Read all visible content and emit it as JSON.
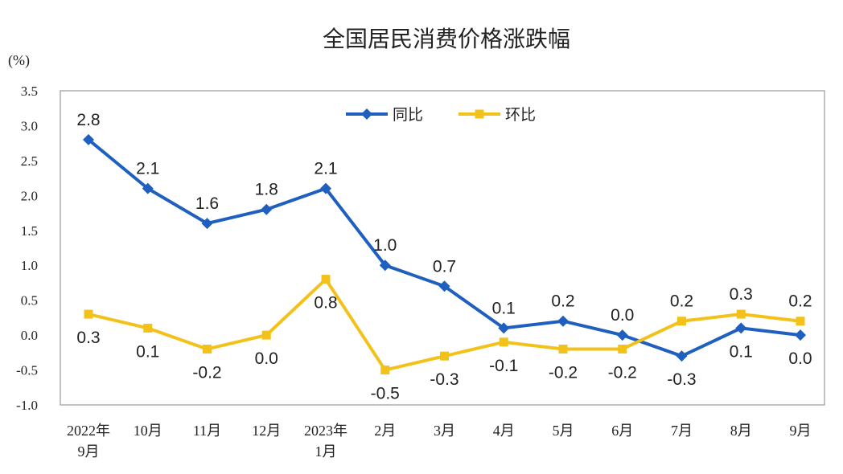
{
  "chart_data": {
    "type": "line",
    "title": "全国居民消费价格涨跌幅",
    "unit": "(%)",
    "ylim": [
      -1.0,
      3.5
    ],
    "yticks": [
      "3.5",
      "3.0",
      "2.5",
      "2.0",
      "1.5",
      "1.0",
      "0.5",
      "0.0",
      "-0.5",
      "-1.0"
    ],
    "ytick_values": [
      3.5,
      3.0,
      2.5,
      2.0,
      1.5,
      1.0,
      0.5,
      0.0,
      -0.5,
      -1.0
    ],
    "categories": [
      [
        "2022年",
        "9月"
      ],
      [
        "10月"
      ],
      [
        "11月"
      ],
      [
        "12月"
      ],
      [
        "2023年",
        "1月"
      ],
      [
        "2月"
      ],
      [
        "3月"
      ],
      [
        "4月"
      ],
      [
        "5月"
      ],
      [
        "6月"
      ],
      [
        "7月"
      ],
      [
        "8月"
      ],
      [
        "9月"
      ]
    ],
    "legend_position": "top-center",
    "grid": false,
    "series": [
      {
        "name": "同比",
        "color": "#1f5fbf",
        "marker": "diamond",
        "values": [
          2.8,
          2.1,
          1.6,
          1.8,
          2.1,
          1.0,
          0.7,
          0.1,
          0.2,
          0.0,
          -0.3,
          0.1,
          0.0
        ],
        "labels": [
          "2.8",
          "2.1",
          "1.6",
          "1.8",
          "2.1",
          "1.0",
          "0.7",
          "0.1",
          "0.2",
          "0.0",
          "-0.3",
          "0.1",
          "0.0"
        ]
      },
      {
        "name": "环比",
        "color": "#f2c21b",
        "marker": "square",
        "values": [
          0.3,
          0.1,
          -0.2,
          0.0,
          0.8,
          -0.5,
          -0.3,
          -0.1,
          -0.2,
          -0.2,
          0.2,
          0.3,
          0.2
        ],
        "labels": [
          "0.3",
          "0.1",
          "-0.2",
          "0.0",
          "0.8",
          "-0.5",
          "-0.3",
          "-0.1",
          "-0.2",
          "-0.2",
          "0.2",
          "0.3",
          "0.2"
        ]
      }
    ]
  }
}
